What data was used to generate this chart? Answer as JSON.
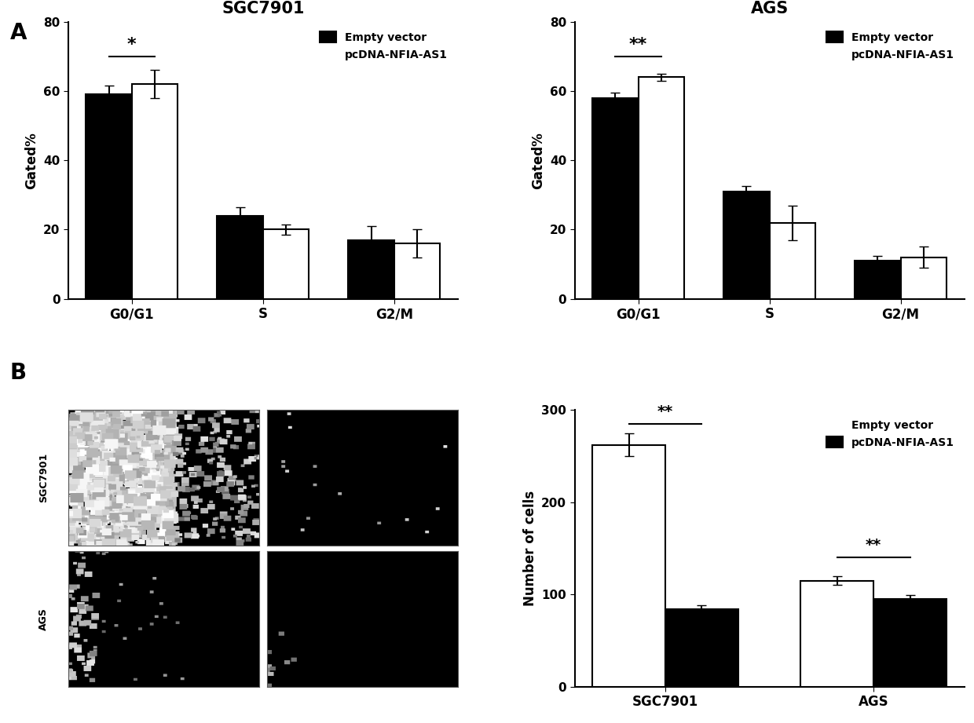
{
  "sgc_title": "SGC7901",
  "ags_title": "AGS",
  "categories": [
    "G0/G1",
    "S",
    "G2/M"
  ],
  "sgc_empty": [
    59,
    24,
    17
  ],
  "sgc_empty_err": [
    2.5,
    2.5,
    4
  ],
  "sgc_pcDNA": [
    62,
    20,
    16
  ],
  "sgc_pcDNA_err": [
    4,
    1.5,
    4
  ],
  "ags_empty": [
    58,
    31,
    11
  ],
  "ags_empty_err": [
    1.5,
    1.5,
    1.5
  ],
  "ags_pcDNA": [
    64,
    22,
    12
  ],
  "ags_pcDNA_err": [
    1,
    5,
    3
  ],
  "sgc_ylabel": "Gated%",
  "ags_ylabel": "Gated%",
  "bar_ylim": [
    0,
    80
  ],
  "bar_yticks": [
    0,
    20,
    40,
    60,
    80
  ],
  "b_categories": [
    "SGC7901",
    "AGS"
  ],
  "b_empty": [
    262,
    115
  ],
  "b_empty_err": [
    12,
    5
  ],
  "b_pcDNA": [
    84,
    95
  ],
  "b_pcDNA_err": [
    4,
    4
  ],
  "b_ylabel": "Number of cells",
  "b_ylim": [
    0,
    300
  ],
  "b_yticks": [
    0,
    100,
    200,
    300
  ],
  "color_empty": "#000000",
  "color_pcDNA": "#ffffff",
  "legend_empty": "Empty vector",
  "legend_pcDNA": "pcDNA-NFIA-AS1",
  "panel_A": "A",
  "panel_B": "B",
  "bar_width": 0.35,
  "edge_color": "#000000",
  "line_width": 1.5
}
